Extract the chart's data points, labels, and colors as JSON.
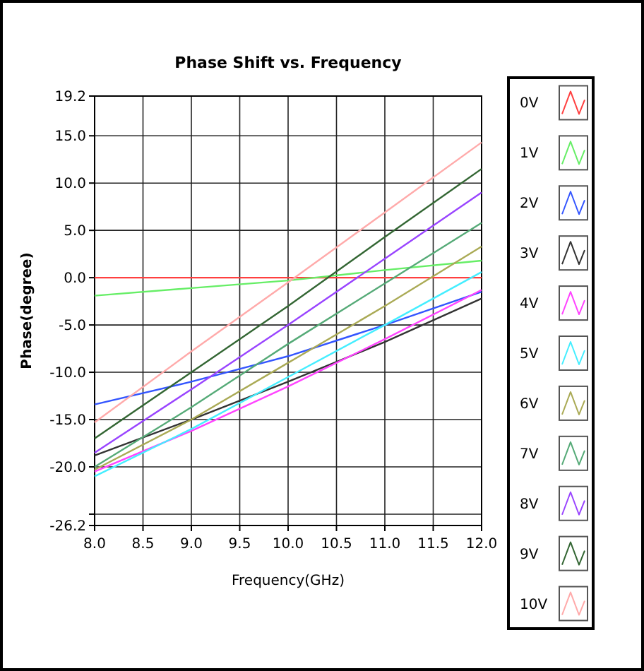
{
  "chart_data": {
    "type": "line",
    "title": "Phase Shift vs. Frequency",
    "xlabel": "Frequency(GHz)",
    "ylabel": "Phase(degree)",
    "x": [
      8,
      9,
      10,
      11,
      12
    ],
    "xlim": [
      8,
      12
    ],
    "xticks": [
      {
        "value": 8,
        "label": "8.0"
      },
      {
        "value": 8.5,
        "label": "8.5"
      },
      {
        "value": 9,
        "label": "9.0"
      },
      {
        "value": 9.5,
        "label": "9.5"
      },
      {
        "value": 10,
        "label": "10.0"
      },
      {
        "value": 10.5,
        "label": "10.5"
      },
      {
        "value": 11,
        "label": "11.0"
      },
      {
        "value": 11.5,
        "label": "11.5"
      },
      {
        "value": 12,
        "label": "12.0"
      }
    ],
    "ylim": [
      -26.2,
      19.2
    ],
    "yticks": [
      {
        "value": -26.2,
        "label": "-26.2"
      },
      {
        "value": -25,
        "label": null
      },
      {
        "value": -20,
        "label": "-20.0"
      },
      {
        "value": -15,
        "label": "-15.0"
      },
      {
        "value": -10,
        "label": "-10.0"
      },
      {
        "value": -5,
        "label": "-5.0"
      },
      {
        "value": 0,
        "label": "0.0"
      },
      {
        "value": 5,
        "label": "5.0"
      },
      {
        "value": 10,
        "label": "10.0"
      },
      {
        "value": 15,
        "label": "15.0"
      },
      {
        "value": 19.2,
        "label": "19.2"
      }
    ],
    "grid": true,
    "legend": "right",
    "marker": "none",
    "line_style": "solid",
    "series": [
      {
        "name": "0V",
        "color": "#ff4040",
        "values": [
          0,
          0,
          0,
          0,
          0
        ]
      },
      {
        "name": "1V",
        "color": "#66ee66",
        "values": [
          -1.9,
          -1.1,
          -0.3,
          0.8,
          1.8
        ]
      },
      {
        "name": "2V",
        "color": "#3355ff",
        "values": [
          -13.4,
          -11,
          -8.3,
          -5,
          -1.5
        ]
      },
      {
        "name": "3V",
        "color": "#333333",
        "values": [
          -18.8,
          -15,
          -11,
          -6.8,
          -2.2
        ]
      },
      {
        "name": "4V",
        "color": "#ff44ff",
        "values": [
          -20.5,
          -16.2,
          -11.5,
          -6.5,
          -1.3
        ]
      },
      {
        "name": "5V",
        "color": "#44eeff",
        "values": [
          -21,
          -16,
          -10.5,
          -5,
          0.6
        ]
      },
      {
        "name": "6V",
        "color": "#aaaa55",
        "values": [
          -20.3,
          -15,
          -9,
          -3,
          3.3
        ]
      },
      {
        "name": "7V",
        "color": "#55aa77",
        "values": [
          -20,
          -13.7,
          -7,
          -0.6,
          5.8
        ]
      },
      {
        "name": "8V",
        "color": "#9944ff",
        "values": [
          -18.5,
          -11.8,
          -5,
          2,
          9
        ]
      },
      {
        "name": "9V",
        "color": "#336633",
        "values": [
          -17,
          -10,
          -3,
          4.3,
          11.5
        ]
      },
      {
        "name": "10V",
        "color": "#ffaaaa",
        "values": [
          -15.3,
          -7.8,
          -0.5,
          6.9,
          14.3
        ]
      }
    ]
  }
}
